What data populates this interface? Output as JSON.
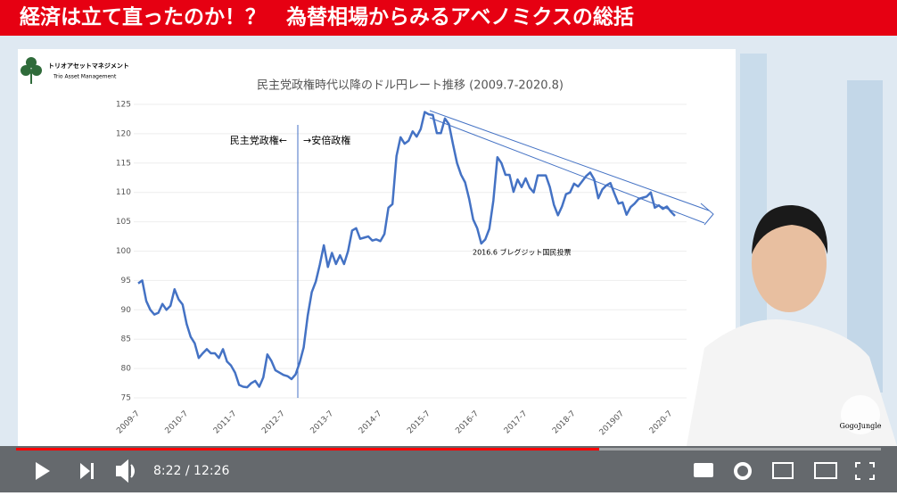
{
  "banner": {
    "title": "経済は立て直ったのか！？　為替相場からみるアベノミクスの総括"
  },
  "logo": {
    "name": "トリオアセットマネジメント",
    "subtitle": "Trio Asset Management"
  },
  "watermark": "GogoJungle",
  "player": {
    "time": "8:22 / 12:26"
  },
  "chart_data": {
    "type": "line",
    "title": "民主党政権時代以降のドル円レート推移 (2009.7-2020.8)",
    "annotations": [
      "民主党政権←",
      "→安倍政権",
      "2016.6 ブレグジット国民投票"
    ],
    "color": "#4472c4",
    "grid": true,
    "ylim": [
      75,
      125
    ],
    "yticks": [
      75,
      80,
      85,
      90,
      95,
      100,
      105,
      110,
      115,
      120,
      125
    ],
    "categories": [
      "2009-7",
      null,
      null,
      null,
      null,
      null,
      null,
      null,
      null,
      null,
      null,
      null,
      "2010-7",
      null,
      null,
      null,
      null,
      null,
      null,
      null,
      null,
      null,
      null,
      null,
      "2011-7",
      null,
      null,
      null,
      null,
      null,
      null,
      null,
      null,
      null,
      null,
      null,
      "2012-7",
      null,
      null,
      null,
      null,
      null,
      null,
      null,
      null,
      null,
      null,
      null,
      "2013-7",
      null,
      null,
      null,
      null,
      null,
      null,
      null,
      null,
      null,
      null,
      null,
      "2014-7",
      null,
      null,
      null,
      null,
      null,
      null,
      null,
      null,
      null,
      null,
      null,
      "2015-7",
      null,
      null,
      null,
      null,
      null,
      null,
      null,
      null,
      null,
      null,
      null,
      "2016-7",
      null,
      null,
      null,
      null,
      null,
      null,
      null,
      null,
      null,
      null,
      null,
      "2017-7",
      null,
      null,
      null,
      null,
      null,
      null,
      null,
      null,
      null,
      null,
      null,
      "2018-7",
      null,
      null,
      null,
      null,
      null,
      null,
      null,
      null,
      null,
      null,
      null,
      "201907",
      null,
      null,
      null,
      null,
      null,
      null,
      null,
      null,
      null,
      null,
      null,
      "2020-7",
      null
    ],
    "values": [
      94.5,
      95,
      91.5,
      90,
      89.2,
      89.5,
      91,
      90,
      90.7,
      93.5,
      91.8,
      90.9,
      87.6,
      85.4,
      84.3,
      81.8,
      82.6,
      83.3,
      82.6,
      82.6,
      81.8,
      83.3,
      81.2,
      80.5,
      79.3,
      77.2,
      76.9,
      76.8,
      77.5,
      77.9,
      76.9,
      78.5,
      82.4,
      81.3,
      79.7,
      79.3,
      78.9,
      78.7,
      78.2,
      79,
      81,
      83.6,
      89,
      93,
      94.8,
      97.7,
      101,
      97.3,
      99.7,
      97.8,
      99.3,
      97.8,
      100,
      103.5,
      103.9,
      102.1,
      102.3,
      102.5,
      101.8,
      102,
      101.7,
      102.9,
      107.4,
      108,
      116.2,
      119.4,
      118.3,
      118.8,
      120.4,
      119.5,
      120.8,
      123.7,
      123.3,
      123.2,
      120.1,
      120.1,
      122.6,
      121.6,
      118.2,
      115,
      113,
      111.7,
      108.9,
      105.4,
      103.9,
      101.3,
      102,
      103.8,
      108.6,
      116,
      115,
      113,
      113,
      110.1,
      112.2,
      110.9,
      112.4,
      110.8,
      110,
      112.9,
      112.9,
      112.9,
      110.9,
      107.9,
      106.1,
      107.6,
      109.7,
      110,
      111.5,
      111,
      111.9,
      112.8,
      113.4,
      112.2,
      109,
      110.5,
      111.2,
      111.6,
      109.8,
      108.1,
      108.3,
      106.2,
      107.5,
      108.1,
      108.9,
      109.1,
      109.3,
      110,
      107.4,
      107.8,
      107.2,
      107.6,
      106.7,
      106
    ]
  }
}
